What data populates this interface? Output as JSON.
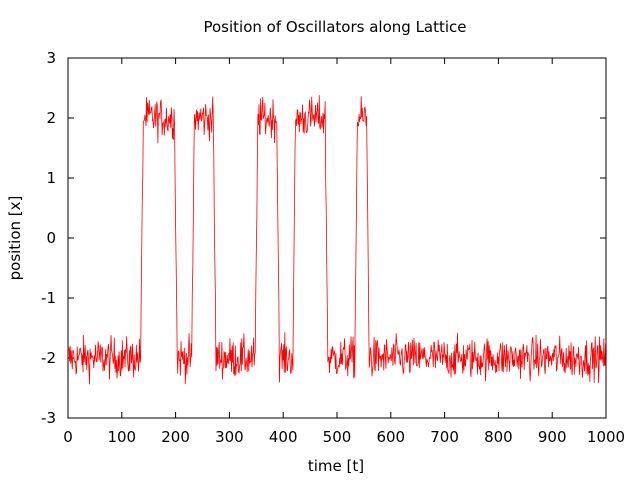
{
  "chart_data": {
    "type": "line",
    "title": "Position of Oscillators along Lattice",
    "xlabel": "time [t]",
    "ylabel": "position [x]",
    "xlim": [
      0,
      1000
    ],
    "ylim": [
      -3,
      3
    ],
    "grid": false,
    "legend": "none",
    "x_ticks": [
      0,
      100,
      200,
      300,
      400,
      500,
      600,
      700,
      800,
      900,
      1000
    ],
    "y_ticks": [
      -3,
      -2,
      -1,
      0,
      1,
      2,
      3
    ],
    "x_tick_labels": [
      "0",
      "100",
      "200",
      "300",
      "400",
      "500",
      "600",
      "700",
      "800",
      "900",
      "1000"
    ],
    "y_tick_labels": [
      "-3",
      "-2",
      "-1",
      "0",
      "1",
      "2",
      "3"
    ],
    "series": [
      {
        "color": "#ff0000",
        "segments": [
          {
            "t_start": 0,
            "t_end": 135,
            "level": -2
          },
          {
            "t_start": 140,
            "t_end": 198,
            "level": 2
          },
          {
            "t_start": 203,
            "t_end": 230,
            "level": -2
          },
          {
            "t_start": 235,
            "t_end": 270,
            "level": 2
          },
          {
            "t_start": 275,
            "t_end": 348,
            "level": -2
          },
          {
            "t_start": 353,
            "t_end": 388,
            "level": 2
          },
          {
            "t_start": 393,
            "t_end": 418,
            "level": -2
          },
          {
            "t_start": 423,
            "t_end": 478,
            "level": 2
          },
          {
            "t_start": 483,
            "t_end": 533,
            "level": -2
          },
          {
            "t_start": 538,
            "t_end": 555,
            "level": 2
          },
          {
            "t_start": 560,
            "t_end": 1000,
            "level": -2
          }
        ],
        "noise_amplitude": 0.18,
        "sample_step": 1
      }
    ]
  }
}
